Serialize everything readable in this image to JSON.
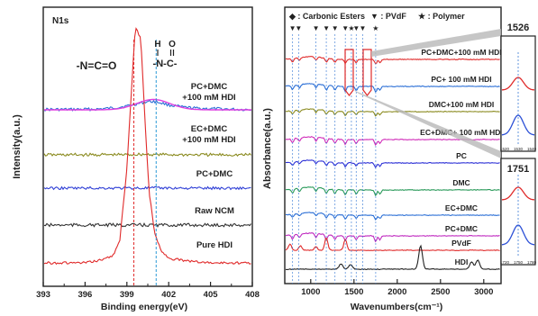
{
  "chart_data": [
    {
      "type": "line",
      "panel": "left",
      "title": "N1s",
      "xlabel": "Binding energy(eV)",
      "ylabel": "Intensity(a.u.)",
      "xlim": [
        393,
        408
      ],
      "x_ticks": [
        "393",
        "396",
        "399",
        "402",
        "405",
        "408"
      ],
      "grid": false,
      "annotations": [
        "-N=C=O",
        "H",
        "O",
        "-N-C-",
        "PC+DMC",
        "+100 mM HDI",
        "EC+DMC",
        "+100 mM HDI",
        "PC+DMC",
        "Raw NCM",
        "Pure HDI"
      ],
      "series": [
        {
          "name": "PC+DMC +100 mM HDI",
          "color": "#2b6fd6",
          "x": [
            393,
            395,
            397,
            398,
            399,
            400,
            400.5,
            401,
            401.5,
            402,
            403,
            404,
            405,
            406,
            407,
            408
          ],
          "y": [
            0.01,
            0.01,
            0.02,
            0.05,
            0.1,
            0.18,
            0.22,
            0.22,
            0.18,
            0.13,
            0.07,
            0.04,
            0.03,
            0.02,
            0.01,
            0.01
          ]
        },
        {
          "name": "EC+DMC +100 mM HDI",
          "color": "#8a8a1e",
          "x": [
            393,
            396,
            399,
            400,
            401,
            402,
            405,
            408
          ],
          "y": [
            0,
            0,
            0.01,
            0.03,
            0.02,
            0.01,
            0,
            0
          ]
        },
        {
          "name": "PC+DMC",
          "color": "#2f3fd6",
          "x": [
            393,
            396,
            399,
            402,
            405,
            408
          ],
          "y": [
            0,
            0,
            0.01,
            0.01,
            0,
            0
          ]
        },
        {
          "name": "Raw NCM",
          "color": "#333333",
          "x": [
            393,
            396,
            399,
            402,
            405,
            408
          ],
          "y": [
            0,
            0,
            0,
            0,
            0,
            0
          ]
        },
        {
          "name": "Pure HDI",
          "color": "#e02a2a",
          "x": [
            393,
            396,
            397,
            398,
            398.5,
            399,
            399.3,
            399.6,
            400,
            400.3,
            400.6,
            401,
            401.5,
            402,
            403,
            405,
            408
          ],
          "y": [
            0,
            0,
            0.01,
            0.03,
            0.1,
            0.4,
            0.7,
            1.0,
            0.95,
            0.6,
            0.3,
            0.12,
            0.05,
            0.02,
            0.01,
            0,
            0
          ]
        }
      ]
    },
    {
      "type": "line",
      "panel": "right",
      "xlabel": "Wavenumbers(cm⁻¹)",
      "ylabel": "Absorbance(a.u.)",
      "x_ticks": [
        "1000",
        "1500",
        "2000",
        "2500",
        "3000"
      ],
      "xlim": [
        700,
        3200
      ],
      "grid": false,
      "legend": {
        "items": [
          "◆ : Carbonic Esters",
          "▼ : PVdF",
          "★ : Polymer"
        ],
        "placement": "top"
      },
      "series": [
        {
          "name": "PC+DMC+100 mM HDI",
          "color": "#e02a2a"
        },
        {
          "name": "PC+ 100 mM HDI",
          "color": "#2b6fd6"
        },
        {
          "name": "DMC+100 mM HDI",
          "color": "#8a8a1e"
        },
        {
          "name": "EC+DMC+ 100 mM HDI",
          "color": "#d02ab8"
        },
        {
          "name": "PC",
          "color": "#2b2fd6"
        },
        {
          "name": "DMC",
          "color": "#2a9a5a"
        },
        {
          "name": "EC+DMC",
          "color": "#2b6fd6"
        },
        {
          "name": "PC+DMC",
          "color": "#c02ac0"
        },
        {
          "name": "PVdF",
          "color": "#e02a2a"
        },
        {
          "name": "HDI",
          "color": "#222222"
        }
      ]
    },
    {
      "type": "line",
      "panel": "inset-top",
      "title": "1526",
      "x_ticks": [
        "1520",
        "1530",
        "1540"
      ],
      "series": [
        {
          "name": "PC+DMC+100 mM HDI",
          "color": "#e02a2a"
        },
        {
          "name": "PC+ 100 mM HDI",
          "color": "#2b4fd6"
        }
      ]
    },
    {
      "type": "line",
      "panel": "inset-bottom",
      "title": "1751",
      "x_ticks": [
        "1720",
        "1750",
        "1780"
      ],
      "series": [
        {
          "name": "PC+DMC+100 mM HDI",
          "color": "#e02a2a"
        },
        {
          "name": "PC+ 100 mM HDI",
          "color": "#2b4fd6"
        }
      ]
    }
  ]
}
